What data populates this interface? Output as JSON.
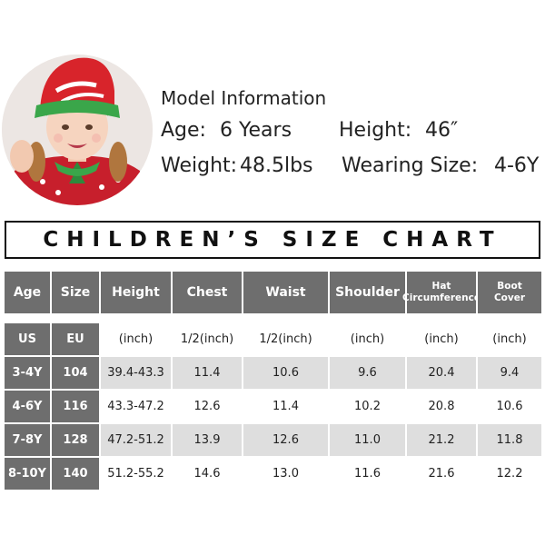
{
  "model": {
    "title": "Model Information",
    "age_label": "Age:",
    "age_value": "6 Years",
    "height_label": "Height:",
    "height_value": "46″",
    "weight_label": "Weight:",
    "weight_value": "48.5lbs",
    "size_label": "Wearing Size:",
    "size_value": "4-6Y",
    "photo_icon": "child-model-photo"
  },
  "banner": {
    "title": "CHILDREN’S SIZE CHART"
  },
  "table": {
    "headers": [
      [
        "Age"
      ],
      [
        "Size"
      ],
      [
        "Height"
      ],
      [
        "Chest"
      ],
      [
        "Waist"
      ],
      [
        "Shoulder"
      ],
      [
        "Hat",
        "Circumference"
      ],
      [
        "Boot",
        "Cover"
      ]
    ],
    "units": [
      "US",
      "EU",
      "(inch)",
      "1/2(inch)",
      "1/2(inch)",
      "(inch)",
      "(inch)",
      "(inch)"
    ],
    "rows": [
      [
        "3-4Y",
        "104",
        "39.4-43.3",
        "11.4",
        "10.6",
        "9.6",
        "20.4",
        "9.4"
      ],
      [
        "4-6Y",
        "116",
        "43.3-47.2",
        "12.6",
        "11.4",
        "10.2",
        "20.8",
        "10.6"
      ],
      [
        "7-8Y",
        "128",
        "47.2-51.2",
        "13.9",
        "12.6",
        "11.0",
        "21.2",
        "11.8"
      ],
      [
        "8-10Y",
        "140",
        "51.2-55.2",
        "14.6",
        "13.0",
        "11.6",
        "21.6",
        "12.2"
      ]
    ]
  },
  "colors": {
    "header_gray": "#6e6e6e",
    "stripe_gray": "#dedede",
    "hat_red": "#d8242b",
    "hat_green": "#3aa64a"
  }
}
